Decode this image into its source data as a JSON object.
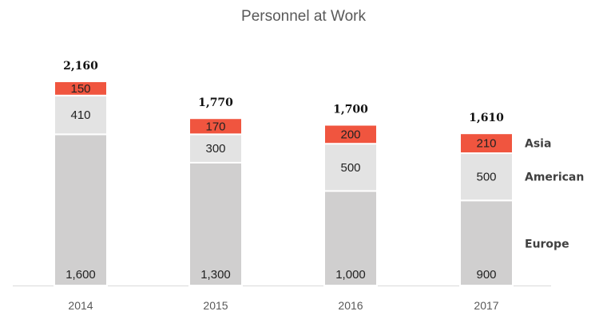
{
  "chart_data": {
    "type": "bar",
    "stacked": true,
    "title": "Personnel at Work",
    "categories": [
      "2014",
      "2015",
      "2016",
      "2017"
    ],
    "series": [
      {
        "name": "Europe",
        "values": [
          1600,
          1300,
          1000,
          900
        ],
        "color": "#d0cfcf"
      },
      {
        "name": "American",
        "values": [
          410,
          300,
          500,
          500
        ],
        "color": "#e3e3e3"
      },
      {
        "name": "Asia",
        "values": [
          150,
          170,
          200,
          210
        ],
        "color": "#f0553f"
      }
    ],
    "value_labels": [
      [
        "1,600",
        "1,300",
        "1,000",
        "900"
      ],
      [
        "410",
        "300",
        "500",
        "500"
      ],
      [
        "150",
        "170",
        "200",
        "210"
      ]
    ],
    "totals": [
      2160,
      1770,
      1700,
      1610
    ],
    "total_labels": [
      "2,160",
      "1,770",
      "1,700",
      "1,610"
    ],
    "ylim": [
      0,
      2160
    ],
    "grid": false,
    "legend": "right"
  }
}
